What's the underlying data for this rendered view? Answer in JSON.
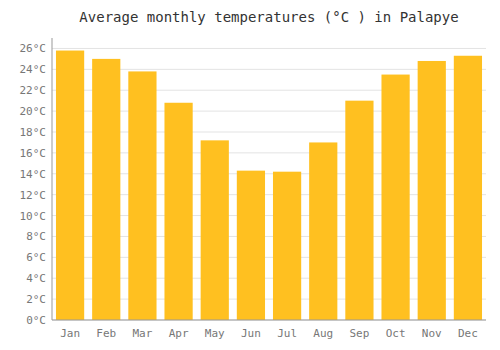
{
  "chart_data": {
    "type": "bar",
    "title": "Average monthly temperatures (°C ) in Palapye",
    "categories": [
      "Jan",
      "Feb",
      "Mar",
      "Apr",
      "May",
      "Jun",
      "Jul",
      "Aug",
      "Sep",
      "Oct",
      "Nov",
      "Dec"
    ],
    "values": [
      25.8,
      25.0,
      23.8,
      20.8,
      17.2,
      14.3,
      14.2,
      17.0,
      21.0,
      23.5,
      24.8,
      25.3
    ],
    "color": "#FFC020",
    "ylim": [
      0,
      27
    ],
    "yticks": [
      {
        "value": 0,
        "label": "0°C"
      },
      {
        "value": 2,
        "label": "2°C"
      },
      {
        "value": 4,
        "label": "4°C"
      },
      {
        "value": 6,
        "label": "6°C"
      },
      {
        "value": 8,
        "label": "8°C"
      },
      {
        "value": 10,
        "label": "10°C"
      },
      {
        "value": 12,
        "label": "12°C"
      },
      {
        "value": 14,
        "label": "14°C"
      },
      {
        "value": 16,
        "label": "16°C"
      },
      {
        "value": 18,
        "label": "18°C"
      },
      {
        "value": 20,
        "label": "20°C"
      },
      {
        "value": 22,
        "label": "22°C"
      },
      {
        "value": 24,
        "label": "24°C"
      },
      {
        "value": 26,
        "label": "26°C"
      }
    ],
    "grid": true
  }
}
